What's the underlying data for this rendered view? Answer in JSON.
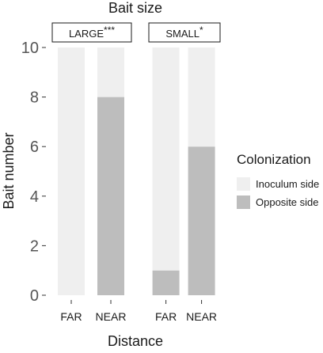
{
  "chart_data": {
    "type": "bar",
    "stacked": true,
    "title": "Bait size",
    "xlabel": "Distance",
    "ylabel": "Bait number",
    "ylim": [
      0,
      10
    ],
    "yticks": [
      "0",
      "2",
      "4",
      "6",
      "8",
      "10"
    ],
    "categories": [
      "FAR",
      "NEAR"
    ],
    "facets": [
      {
        "label": "LARGE",
        "significance": "***"
      },
      {
        "label": "SMALL",
        "significance": "*"
      }
    ],
    "series": [
      {
        "name": "Opposite side",
        "color": "#bdbdbd",
        "values": [
          [
            0,
            8
          ],
          [
            1,
            6
          ]
        ]
      },
      {
        "name": "Inoculum side",
        "color": "#efefef",
        "values": [
          [
            10,
            2
          ],
          [
            9,
            4
          ]
        ]
      }
    ],
    "legend": {
      "title": "Colonization",
      "position": "right",
      "items": [
        "Inoculum side",
        "Opposite side"
      ]
    },
    "grid": false
  }
}
